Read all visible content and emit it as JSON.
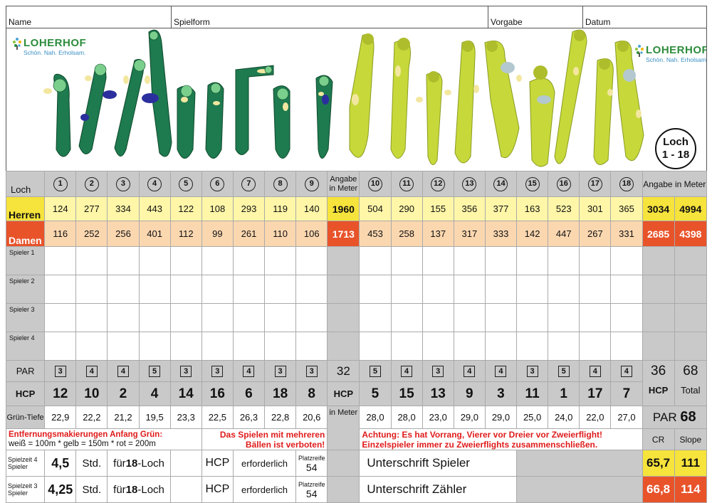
{
  "header": {
    "name_label": "Name",
    "spielform_label": "Spielform",
    "vorgabe_label": "Vorgabe",
    "datum_label": "Datum"
  },
  "logo": {
    "name": "LOHERHOF",
    "slogan": "Schön. Nah. Erholsam."
  },
  "loch_badge": {
    "line1": "Loch",
    "line2": "1 - 18"
  },
  "labels": {
    "loch": "Loch",
    "angabe_meter": "Angabe in Meter",
    "herren": "Herren",
    "damen": "Damen",
    "par": "PAR",
    "hcp": "HCP",
    "gruen_tiefe": "Grün-Tiefe",
    "in_meter": "in Meter",
    "total": "Total",
    "cr": "CR",
    "slope": "Slope"
  },
  "players": [
    "Spieler 1",
    "Spieler 2",
    "Spieler 3",
    "Spieler 4"
  ],
  "front": {
    "holes": [
      "1",
      "2",
      "3",
      "4",
      "5",
      "6",
      "7",
      "8",
      "9"
    ],
    "herren": [
      "124",
      "277",
      "334",
      "443",
      "122",
      "108",
      "293",
      "119",
      "140"
    ],
    "damen": [
      "116",
      "252",
      "256",
      "401",
      "112",
      "99",
      "261",
      "110",
      "106"
    ],
    "par": [
      "3",
      "4",
      "4",
      "5",
      "3",
      "3",
      "4",
      "3",
      "3"
    ],
    "hcp": [
      "12",
      "10",
      "2",
      "4",
      "14",
      "16",
      "6",
      "18",
      "8"
    ],
    "gruen": [
      "22,9",
      "22,2",
      "21,2",
      "19,5",
      "23,3",
      "22,5",
      "26,3",
      "22,8",
      "20,6"
    ],
    "herren_total": "1960",
    "damen_total": "1713",
    "par_total": "32"
  },
  "back": {
    "holes": [
      "10",
      "11",
      "12",
      "13",
      "14",
      "15",
      "16",
      "17",
      "18"
    ],
    "herren": [
      "504",
      "290",
      "155",
      "356",
      "377",
      "163",
      "523",
      "301",
      "365"
    ],
    "damen": [
      "453",
      "258",
      "137",
      "317",
      "333",
      "142",
      "447",
      "267",
      "331"
    ],
    "par": [
      "5",
      "4",
      "3",
      "4",
      "4",
      "3",
      "5",
      "4",
      "4"
    ],
    "hcp": [
      "5",
      "15",
      "13",
      "9",
      "3",
      "11",
      "1",
      "17",
      "7"
    ],
    "gruen": [
      "28,0",
      "28,0",
      "23,0",
      "29,0",
      "29,0",
      "25,0",
      "24,0",
      "22,0",
      "27,0"
    ],
    "herren_total": "3034",
    "damen_total": "2685",
    "par_total": "36"
  },
  "totals": {
    "herren_all": "4994",
    "damen_all": "4398",
    "par_all": "68",
    "par_label_big": "PAR",
    "par_value_big": "68"
  },
  "notes": {
    "markers_title": "Entfernungsmakierungen Anfang Grün:",
    "markers_detail": "weiß = 100m * gelb = 150m * rot = 200m",
    "multi_ball_1": "Das Spielen mit mehreren",
    "multi_ball_2": "Bällen ist verboten!",
    "priority_1": "Achtung: Es hat Vorrang, Vierer vor Dreier vor Zweierflight!",
    "priority_2": "Einzelspieler immer zu Zweierflights zusammenschließen."
  },
  "playtime": [
    {
      "label": "Spielzeit 4 Spieler",
      "hours": "4,5",
      "std": "Std.",
      "fuer": "für",
      "holes": "18",
      "loch": "-Loch",
      "hcp": "HCP",
      "req": "erforderlich",
      "platzreife": "Platzreife",
      "pr_value": "54",
      "signature": "Unterschrift Spieler",
      "cr": "65,7",
      "slope": "111"
    },
    {
      "label": "Spielzeit 3 Spieler",
      "hours": "4,25",
      "std": "Std.",
      "fuer": "für",
      "holes": "18",
      "loch": "-Loch",
      "hcp": "HCP",
      "req": "erforderlich",
      "platzreife": "Platzreife",
      "pr_value": "54",
      "signature": "Unterschrift Zähler",
      "cr": "66,8",
      "slope": "114"
    }
  ],
  "colors": {
    "yellow": "#f6e33b",
    "red": "#e8532a",
    "light_yellow": "#fff6a8",
    "light_orange": "#fbd7b0",
    "gray": "#c9c9c9",
    "fairway_front": "#1e7a4f",
    "fairway_back": "#c7d93a"
  }
}
